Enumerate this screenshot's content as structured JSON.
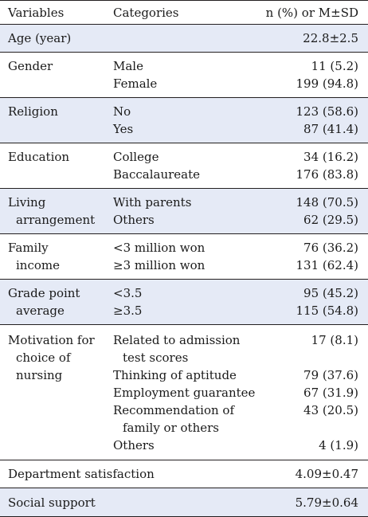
{
  "header": {
    "variables": "Variables",
    "categories": "Categories",
    "value": "n (%) or M±SD"
  },
  "rows": [
    {
      "variable": [
        "Age (year)"
      ],
      "categories": [],
      "values": [
        "22.8±2.5"
      ]
    },
    {
      "variable": [
        "Gender"
      ],
      "categories": [
        "Male",
        "Female"
      ],
      "values": [
        "11 (5.2)",
        "199 (94.8)"
      ]
    },
    {
      "variable": [
        "Religion"
      ],
      "categories": [
        "No",
        "Yes"
      ],
      "values": [
        "123 (58.6)",
        "87 (41.4)"
      ]
    },
    {
      "variable": [
        "Education"
      ],
      "categories": [
        "College",
        "Baccalaureate"
      ],
      "values": [
        "34 (16.2)",
        "176 (83.8)"
      ]
    },
    {
      "variable": [
        "Living",
        "arrangement"
      ],
      "categories": [
        "With parents",
        "Others"
      ],
      "values": [
        "148 (70.5)",
        "62 (29.5)"
      ]
    },
    {
      "variable": [
        "Family",
        "income"
      ],
      "categories": [
        "<3 million won",
        "≥3 million won"
      ],
      "values": [
        "76 (36.2)",
        "131 (62.4)"
      ]
    },
    {
      "variable": [
        "Grade point",
        "average"
      ],
      "categories": [
        "<3.5",
        "≥3.5"
      ],
      "values": [
        "95 (45.2)",
        "115 (54.8)"
      ]
    },
    {
      "variable": [
        "Motivation for",
        "choice of",
        "nursing"
      ],
      "categories": [
        "Related to admission",
        "test scores",
        "Thinking of aptitude",
        "Employment guarantee",
        "Recommendation of",
        "family or others",
        "Others"
      ],
      "values": [
        "17 (8.1)",
        "79 (37.6)",
        "67 (31.9)",
        "43 (20.5)",
        "4 (1.9)"
      ]
    },
    {
      "variable": [
        "Department satisfaction"
      ],
      "categories": [],
      "values": [
        "4.09±0.47"
      ]
    },
    {
      "variable": [
        "Social support"
      ],
      "categories": [],
      "values": [
        "5.79±0.64"
      ]
    }
  ]
}
